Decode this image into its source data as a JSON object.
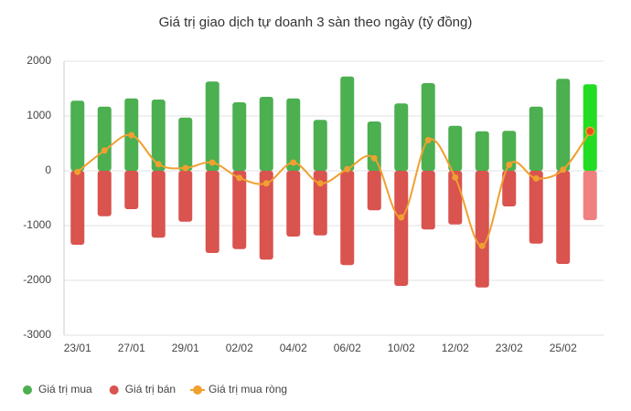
{
  "chart_data": {
    "type": "bar-line",
    "title": "Giá trị giao dịch tự doanh 3 sàn theo ngày (tỷ đồng)",
    "categories": [
      "23/01",
      null,
      "27/01",
      null,
      "29/01",
      null,
      "02/02",
      null,
      "04/02",
      null,
      "06/02",
      null,
      "10/02",
      null,
      "12/02",
      null,
      "23/02",
      null,
      "25/02",
      null
    ],
    "series": [
      {
        "name": "Giá trị mua",
        "color": "#4caf50",
        "highlight_color": "#22dd22",
        "kind": "bar",
        "values": [
          1280,
          1170,
          1320,
          1300,
          970,
          1630,
          1250,
          1350,
          1320,
          930,
          1720,
          900,
          1230,
          1600,
          820,
          720,
          730,
          1170,
          1680,
          1580
        ]
      },
      {
        "name": "Giá trị bán",
        "color": "#d9534f",
        "highlight_color": "#f08080",
        "kind": "bar",
        "values": [
          -1350,
          -830,
          -700,
          -1220,
          -930,
          -1500,
          -1430,
          -1620,
          -1200,
          -1180,
          -1720,
          -720,
          -2100,
          -1070,
          -980,
          -2130,
          -650,
          -1330,
          -1700,
          -900
        ]
      },
      {
        "name": "Giá trị mua ròng",
        "color": "#f0a030",
        "highlight_color": "#e8501a",
        "kind": "line",
        "values": [
          -20,
          370,
          650,
          120,
          50,
          150,
          -130,
          -230,
          150,
          -230,
          30,
          230,
          -850,
          560,
          -120,
          -1370,
          110,
          -140,
          20,
          720
        ]
      }
    ],
    "highlight_index": 19,
    "ylim": [
      -3000,
      2000
    ],
    "yticks": [
      -3000,
      -2000,
      -1000,
      0,
      1000,
      2000
    ],
    "grid": true,
    "legend": "bottom-left"
  }
}
